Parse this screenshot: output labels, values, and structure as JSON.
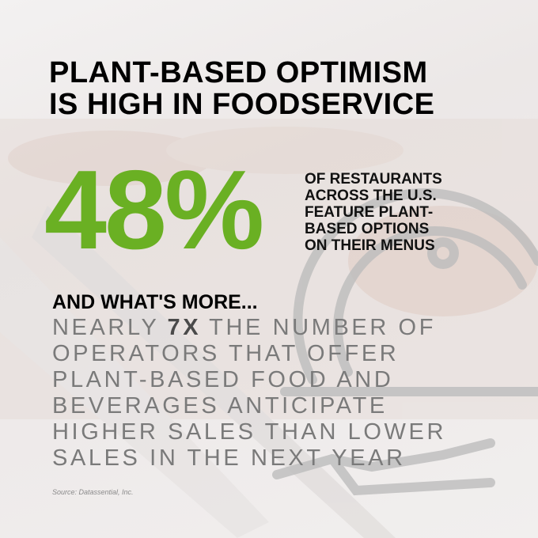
{
  "header": {
    "title_lines": [
      "PLANT-BASED OPTIMISM",
      "IS HIGH IN FOODSERVICE"
    ]
  },
  "stat": {
    "figure": "48%",
    "description_lines": [
      "OF RESTAURANTS",
      "ACROSS THE U.S.",
      "FEATURE PLANT-",
      "BASED OPTIONS",
      "ON THEIR MENUS"
    ]
  },
  "more": {
    "heading": "AND WHAT'S MORE...",
    "first_line": {
      "before": "NEARLY",
      "highlight": "7X",
      "after": "THE NUMBER OF"
    },
    "lines": [
      "OPERATORS THAT OFFER",
      "PLANT-BASED FOOD AND",
      "BEVERAGES ANTICIPATE",
      "HIGHER SALES THAN LOWER",
      "SALES IN THE NEXT YEAR"
    ]
  },
  "source": "Source: Datassential, Inc."
}
